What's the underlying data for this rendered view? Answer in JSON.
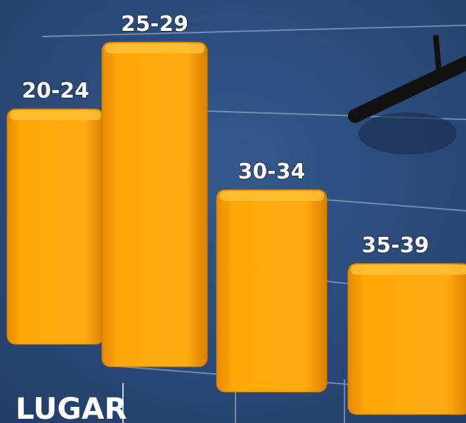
{
  "chart_data": {
    "type": "bar",
    "categories": [
      "20-24",
      "25-29",
      "30-34",
      "35-39"
    ],
    "values": [
      335,
      462,
      288,
      215
    ],
    "color": "#f6a000"
  },
  "caption": "LUGAR"
}
